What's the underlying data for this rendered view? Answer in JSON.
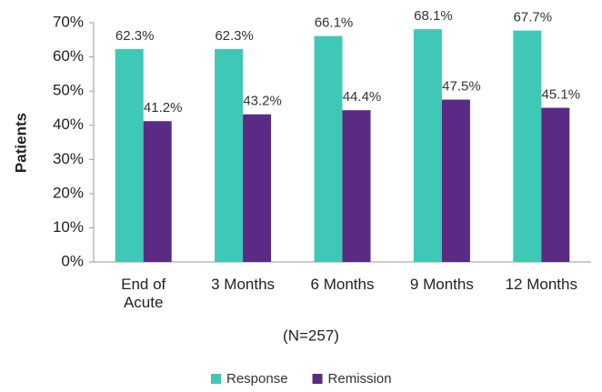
{
  "chart_data": {
    "type": "bar",
    "categories": [
      "End of Acute",
      "3 Months",
      "6 Months",
      "9 Months",
      "12 Months"
    ],
    "series": [
      {
        "name": "Response",
        "color": "#3ec8b5",
        "values": [
          62.3,
          62.3,
          66.1,
          68.1,
          67.7
        ],
        "value_labels": [
          "62.3%",
          "62.3%",
          "66.1%",
          "68.1%",
          "67.7%"
        ]
      },
      {
        "name": "Remission",
        "color": "#5a2a85",
        "values": [
          41.2,
          43.2,
          44.4,
          47.5,
          45.1
        ],
        "value_labels": [
          "41.2%",
          "43.2%",
          "44.4%",
          "47.5%",
          "45.1%"
        ]
      }
    ],
    "xlabel": "(N=257)",
    "ylabel": "Patients",
    "ylim": [
      0,
      70
    ],
    "yticks": [
      {
        "value": 0,
        "label": "0%"
      },
      {
        "value": 10,
        "label": "10%"
      },
      {
        "value": 20,
        "label": "20%"
      },
      {
        "value": 30,
        "label": "30%"
      },
      {
        "value": 40,
        "label": "40%"
      },
      {
        "value": 50,
        "label": "50%"
      },
      {
        "value": 60,
        "label": "60%"
      },
      {
        "value": 70,
        "label": "70%"
      }
    ],
    "grid": false,
    "legend": "bottom"
  }
}
